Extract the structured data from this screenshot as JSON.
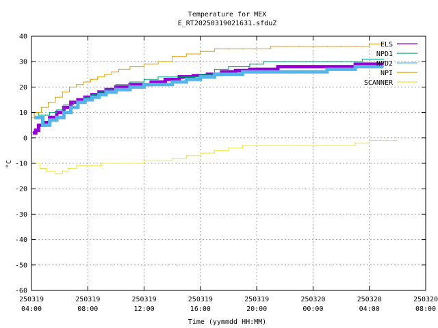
{
  "chart_data": {
    "type": "line",
    "title": "Temperature for MEX",
    "subtitle": "E_RT20250319021631.sfduZ",
    "xlabel": "Time (yymmdd HH:MM)",
    "ylabel": "°C",
    "ylim": [
      -60,
      40
    ],
    "xlim": [
      4,
      32
    ],
    "grid": true,
    "legend_position": "top-right",
    "y_ticks": [
      {
        "value": 40,
        "label": "40"
      },
      {
        "value": 30,
        "label": "30"
      },
      {
        "value": 20,
        "label": "20"
      },
      {
        "value": 10,
        "label": "10"
      },
      {
        "value": 0,
        "label": "0"
      },
      {
        "value": -10,
        "label": "-10"
      },
      {
        "value": -20,
        "label": "-20"
      },
      {
        "value": -30,
        "label": "-30"
      },
      {
        "value": -40,
        "label": "-40"
      },
      {
        "value": -50,
        "label": "-50"
      },
      {
        "value": -60,
        "label": "-60"
      }
    ],
    "x_ticks": [
      {
        "value": 4,
        "date": "250319",
        "time": "04:00"
      },
      {
        "value": 8,
        "date": "250319",
        "time": "08:00"
      },
      {
        "value": 12,
        "date": "250319",
        "time": "12:00"
      },
      {
        "value": 16,
        "date": "250319",
        "time": "16:00"
      },
      {
        "value": 20,
        "date": "250319",
        "time": "20:00"
      },
      {
        "value": 24,
        "date": "250320",
        "time": "00:00"
      },
      {
        "value": 28,
        "date": "250320",
        "time": "04:00"
      },
      {
        "value": 32,
        "date": "250320",
        "time": "08:00"
      }
    ],
    "series": [
      {
        "name": "ELS",
        "color": "#9400d3",
        "width": 5,
        "points": [
          [
            4.1,
            2
          ],
          [
            4.3,
            3
          ],
          [
            4.5,
            5
          ],
          [
            4.9,
            6
          ],
          [
            5.3,
            8
          ],
          [
            5.8,
            10
          ],
          [
            6.3,
            12
          ],
          [
            6.8,
            14
          ],
          [
            7.3,
            15
          ],
          [
            7.8,
            16
          ],
          [
            8.3,
            17
          ],
          [
            8.8,
            18
          ],
          [
            9.3,
            19
          ],
          [
            10,
            20
          ],
          [
            11,
            21
          ],
          [
            12.5,
            22
          ],
          [
            13.5,
            23
          ],
          [
            14.5,
            24
          ],
          [
            15.5,
            24.5
          ],
          [
            16.5,
            25
          ],
          [
            17.5,
            26
          ],
          [
            18.5,
            26.5
          ],
          [
            19.5,
            27
          ],
          [
            20.5,
            27
          ],
          [
            21.5,
            28
          ],
          [
            23,
            28
          ],
          [
            24.5,
            28
          ],
          [
            26,
            28
          ],
          [
            27,
            29
          ],
          [
            28.3,
            29
          ],
          [
            29,
            29
          ]
        ]
      },
      {
        "name": "NPD1",
        "color": "#009e73",
        "width": 1,
        "points": [
          [
            4,
            10
          ],
          [
            4.5,
            9
          ],
          [
            5,
            9
          ],
          [
            5.3,
            10
          ],
          [
            5.8,
            11
          ],
          [
            6.3,
            13
          ],
          [
            7,
            14
          ],
          [
            7.8,
            16
          ],
          [
            8.3,
            17
          ],
          [
            8.8,
            18
          ],
          [
            9.3,
            19
          ],
          [
            10,
            21
          ],
          [
            11,
            22
          ],
          [
            12,
            23
          ],
          [
            13,
            24
          ],
          [
            14,
            24
          ],
          [
            15,
            24
          ],
          [
            16,
            25
          ],
          [
            17,
            27
          ],
          [
            18,
            28
          ],
          [
            19.5,
            29
          ],
          [
            20.5,
            30
          ],
          [
            22,
            30
          ],
          [
            23.5,
            30
          ],
          [
            25,
            30
          ],
          [
            26,
            30
          ],
          [
            27,
            30
          ],
          [
            27.5,
            31
          ],
          [
            28.5,
            31
          ],
          [
            29,
            31
          ]
        ]
      },
      {
        "name": "NPD2",
        "color": "#56b4e9",
        "width": 5,
        "points": [
          [
            4.2,
            8
          ],
          [
            4.8,
            5
          ],
          [
            5.3,
            7
          ],
          [
            5.8,
            8
          ],
          [
            6.3,
            10
          ],
          [
            6.8,
            12
          ],
          [
            7.3,
            14
          ],
          [
            7.8,
            15
          ],
          [
            8.3,
            16
          ],
          [
            8.8,
            17
          ],
          [
            9.3,
            18
          ],
          [
            10,
            19
          ],
          [
            11,
            20
          ],
          [
            12,
            21
          ],
          [
            13,
            21
          ],
          [
            14,
            22
          ],
          [
            15,
            23
          ],
          [
            16,
            24
          ],
          [
            17,
            25
          ],
          [
            18,
            25
          ],
          [
            19,
            26
          ],
          [
            20,
            26
          ],
          [
            21,
            26
          ],
          [
            22,
            26
          ],
          [
            23,
            26
          ],
          [
            24,
            26
          ],
          [
            25,
            27
          ],
          [
            26,
            27
          ],
          [
            27,
            28
          ],
          [
            28,
            28
          ],
          [
            29,
            28
          ]
        ]
      },
      {
        "name": "NPI",
        "color": "#e69f00",
        "width": 1,
        "points": [
          [
            4,
            8
          ],
          [
            4.2,
            10
          ],
          [
            4.7,
            12
          ],
          [
            5.2,
            14
          ],
          [
            5.7,
            16
          ],
          [
            6.2,
            18
          ],
          [
            6.7,
            20
          ],
          [
            7.2,
            21
          ],
          [
            7.7,
            22
          ],
          [
            8.2,
            23
          ],
          [
            8.7,
            24
          ],
          [
            9.2,
            25
          ],
          [
            9.7,
            26
          ],
          [
            10.2,
            27
          ],
          [
            11,
            28
          ],
          [
            12,
            29
          ],
          [
            13,
            30
          ],
          [
            14,
            32
          ],
          [
            15,
            33
          ],
          [
            16,
            34
          ],
          [
            17,
            35
          ],
          [
            18,
            35
          ],
          [
            19,
            35
          ],
          [
            20,
            35
          ],
          [
            21,
            36
          ],
          [
            22,
            36
          ],
          [
            23,
            36
          ],
          [
            24,
            36
          ],
          [
            25,
            36
          ],
          [
            26,
            36
          ],
          [
            27,
            36
          ],
          [
            28,
            37
          ],
          [
            29,
            37
          ]
        ]
      },
      {
        "name": "SCANNER",
        "color": "#f0e442",
        "width": 1,
        "points": [
          [
            4,
            -10
          ],
          [
            4.3,
            -10
          ],
          [
            4.6,
            -12
          ],
          [
            5.1,
            -13
          ],
          [
            5.7,
            -14
          ],
          [
            6.2,
            -13
          ],
          [
            6.6,
            -12
          ],
          [
            7.2,
            -11
          ],
          [
            8,
            -11
          ],
          [
            9,
            -10
          ],
          [
            10,
            -10
          ],
          [
            11,
            -10
          ],
          [
            12,
            -9
          ],
          [
            13,
            -9
          ],
          [
            14,
            -8
          ],
          [
            15,
            -7
          ],
          [
            16,
            -6
          ],
          [
            17,
            -5
          ],
          [
            18,
            -4
          ],
          [
            19,
            -3
          ],
          [
            20,
            -3
          ],
          [
            21,
            -3
          ],
          [
            22,
            -3
          ],
          [
            23,
            -3
          ],
          [
            24,
            -3
          ],
          [
            25,
            -3
          ],
          [
            26,
            -3
          ],
          [
            27,
            -2
          ],
          [
            28,
            -1
          ],
          [
            29,
            -1
          ],
          [
            30,
            -1
          ]
        ]
      }
    ]
  }
}
